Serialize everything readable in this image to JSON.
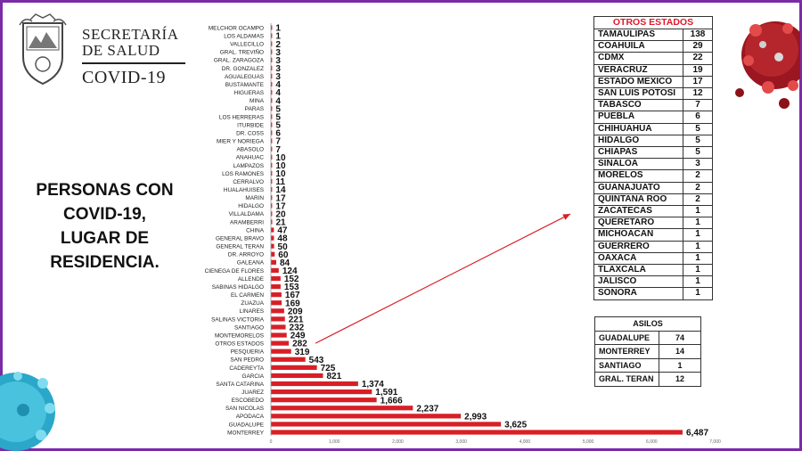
{
  "logo": {
    "line1": "SECRETARÍA",
    "line2": "DE SALUD",
    "line3": "COVID-19"
  },
  "headline": [
    "PERSONAS CON",
    "COVID-19,",
    "LUGAR DE",
    "RESIDENCIA."
  ],
  "colors": {
    "bar": "#d81f26",
    "frame": "#7b2aa8",
    "table_header": "#e0182b",
    "arrow": "#d81f26"
  },
  "chart_data": {
    "type": "bar",
    "orientation": "horizontal",
    "categories": [
      "MELCHOR OCAMPO",
      "LOS ALDAMAS",
      "VALLECILLO",
      "GRAL. TREVIÑO",
      "GRAL. ZARAGOZA",
      "DR. GONZALEZ",
      "AGUALEGUAS",
      "BUSTAMANTE",
      "HIGUERAS",
      "MINA",
      "PARAS",
      "LOS HERRERAS",
      "ITURBIDE",
      "DR. COSS",
      "MIER Y NORIEGA",
      "ABASOLO",
      "ANAHUAC",
      "LAMPAZOS",
      "LOS RAMONES",
      "CERRALVO",
      "HUALAHUISES",
      "MARIN",
      "HIDALGO",
      "VILLALDAMA",
      "ARAMBERRI",
      "CHINA",
      "GENERAL BRAVO",
      "GENERAL TERAN",
      "DR. ARROYO",
      "GALEANA",
      "CIENEGA DE FLORES",
      "ALLENDE",
      "SABINAS HIDALGO",
      "EL CARMEN",
      "ZUAZUA",
      "LINARES",
      "SALINAS VICTORIA",
      "SANTIAGO",
      "MONTEMORELOS",
      "OTROS ESTADOS",
      "PESQUERIA",
      "SAN PEDRO",
      "CADEREYTA",
      "GARCIA",
      "SANTA CATARINA",
      "JUAREZ",
      "ESCOBEDO",
      "SAN NICOLAS",
      "APODACA",
      "GUADALUPE",
      "MONTERREY"
    ],
    "values": [
      1,
      1,
      2,
      3,
      3,
      3,
      3,
      4,
      4,
      4,
      5,
      5,
      5,
      6,
      7,
      7,
      10,
      10,
      10,
      11,
      14,
      17,
      17,
      20,
      21,
      47,
      48,
      50,
      60,
      84,
      124,
      152,
      153,
      167,
      169,
      209,
      221,
      232,
      249,
      282,
      319,
      543,
      725,
      821,
      1374,
      1591,
      1666,
      2237,
      2993,
      3625,
      6487
    ],
    "value_labels": [
      "1",
      "1",
      "2",
      "3",
      "3",
      "3",
      "3",
      "4",
      "4",
      "4",
      "5",
      "5",
      "5",
      "6",
      "7",
      "7",
      "10",
      "10",
      "10",
      "11",
      "14",
      "17",
      "17",
      "20",
      "21",
      "47",
      "48",
      "50",
      "60",
      "84",
      "124",
      "152",
      "153",
      "167",
      "169",
      "209",
      "221",
      "232",
      "249",
      "282",
      "319",
      "543",
      "725",
      "821",
      "1,374",
      "1,591",
      "1,666",
      "2,237",
      "2,993",
      "3,625",
      "6,487"
    ],
    "xlim": [
      0,
      7000
    ],
    "x_ticks": [
      "0",
      "1,000",
      "2,000",
      "3,000",
      "4,000",
      "5,000",
      "6,000",
      "7,000"
    ],
    "arrow_from": "OTROS ESTADOS",
    "arrow_to": "otros-estados-table",
    "grid": false,
    "legend": "none"
  },
  "otros_estados": {
    "title": "OTROS ESTADOS",
    "rows": [
      [
        "TAMAULIPAS",
        "138"
      ],
      [
        "COAHUILA",
        "29"
      ],
      [
        "CDMX",
        "22"
      ],
      [
        "VERACRUZ",
        "19"
      ],
      [
        "ESTADO MEXICO",
        "17"
      ],
      [
        "SAN LUIS POTOSI",
        "12"
      ],
      [
        "TABASCO",
        "7"
      ],
      [
        "PUEBLA",
        "6"
      ],
      [
        "CHIHUAHUA",
        "5"
      ],
      [
        "HIDALGO",
        "5"
      ],
      [
        "CHIAPAS",
        "5"
      ],
      [
        "SINALOA",
        "3"
      ],
      [
        "MORELOS",
        "2"
      ],
      [
        "GUANAJUATO",
        "2"
      ],
      [
        "QUINTANA ROO",
        "2"
      ],
      [
        "ZACATECAS",
        "1"
      ],
      [
        "QUERETARO",
        "1"
      ],
      [
        "MICHOACAN",
        "1"
      ],
      [
        "GUERRERO",
        "1"
      ],
      [
        "OAXACA",
        "1"
      ],
      [
        "TLAXCALA",
        "1"
      ],
      [
        "JALISCO",
        "1"
      ],
      [
        "SONORA",
        "1"
      ]
    ]
  },
  "asilos": {
    "title": "ASILOS",
    "rows": [
      [
        "GUADALUPE",
        "74"
      ],
      [
        "MONTERREY",
        "14"
      ],
      [
        "SANTIAGO",
        "1"
      ],
      [
        "GRAL. TERAN",
        "12"
      ]
    ]
  }
}
